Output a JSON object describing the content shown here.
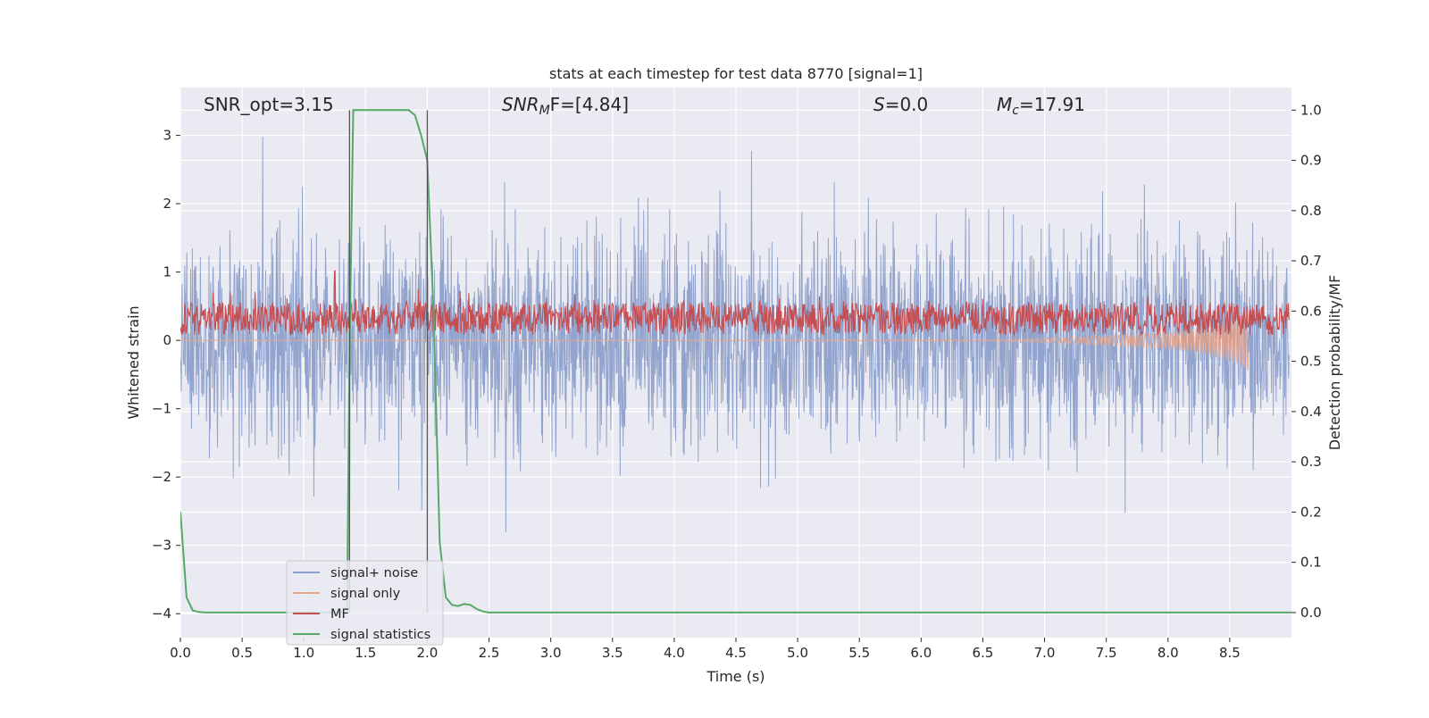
{
  "chart_data": {
    "type": "line",
    "title": "stats at each timestep for test data 8770 [signal=1]",
    "xlabel": "Time (s)",
    "ylabel": "Whitened strain",
    "ylabel_right": "Detection probability/MF",
    "xlim": [
      0.0,
      9.0
    ],
    "ylim": [
      -4.35,
      3.7
    ],
    "ylim_right": [
      -0.05,
      1.045
    ],
    "x_ticks": [
      0.0,
      0.5,
      1.0,
      1.5,
      2.0,
      2.5,
      3.0,
      3.5,
      4.0,
      4.5,
      5.0,
      5.5,
      6.0,
      6.5,
      7.0,
      7.5,
      8.0,
      8.5
    ],
    "x_tick_labels": [
      "0.0",
      "0.5",
      "1.0",
      "1.5",
      "2.0",
      "2.5",
      "3.0",
      "3.5",
      "4.0",
      "4.5",
      "5.0",
      "5.5",
      "6.0",
      "6.5",
      "7.0",
      "7.5",
      "8.0",
      "8.5"
    ],
    "y_ticks": [
      3,
      2,
      1,
      0,
      -1,
      -2,
      -3,
      -4
    ],
    "y_tick_labels": [
      "3",
      "2",
      "1",
      "0",
      "−1",
      "−2",
      "−3",
      "−4"
    ],
    "y_right_ticks": [
      1.0,
      0.9,
      0.8,
      0.7,
      0.6,
      0.5,
      0.4,
      0.3,
      0.2,
      0.1,
      0.0
    ],
    "y_right_tick_labels": [
      "1.0",
      "0.9",
      "0.8",
      "0.7",
      "0.6",
      "0.5",
      "0.4",
      "0.3",
      "0.2",
      "0.1",
      "0.0"
    ],
    "grid": true,
    "legend_position": "lower-left",
    "annotations": {
      "snr_opt": "SNR_opt=3.15",
      "snr_mf_main": "SNR",
      "snr_mf_sub": "M",
      "snr_mf_rest": "F=[4.84]",
      "s_main": "S",
      "s_rest": "=0.0",
      "mc_main": "M",
      "mc_sub": "c",
      "mc_rest": "=17.91"
    },
    "vertical_lines_x": [
      1.37,
      2.0
    ],
    "series": [
      {
        "name": "signal+ noise",
        "color": "#8da0cb",
        "axis": "left",
        "description_range": [
          -4.0,
          3.3
        ]
      },
      {
        "name": "signal only",
        "color": "#e8a58c",
        "axis": "left",
        "envelope": {
          "x": [
            0.0,
            6.5,
            7.0,
            7.5,
            8.0,
            8.3,
            8.5,
            8.65
          ],
          "amp": [
            0.005,
            0.01,
            0.03,
            0.07,
            0.12,
            0.2,
            0.3,
            0.45
          ]
        }
      },
      {
        "name": "MF",
        "color": "#c44e52",
        "axis": "right",
        "baseline": 0.585,
        "spike": {
          "x": 1.25,
          "y": 0.68
        }
      },
      {
        "name": "signal statistics",
        "color": "#55a868",
        "axis": "right",
        "x": [
          0.0,
          0.05,
          0.1,
          0.15,
          0.2,
          1.3,
          1.35,
          1.37,
          1.4,
          1.45,
          1.5,
          1.7,
          1.85,
          1.9,
          1.95,
          2.0,
          2.05,
          2.1,
          2.15,
          2.2,
          2.25,
          2.3,
          2.35,
          2.4,
          2.45,
          2.5,
          2.6,
          9.0
        ],
        "y": [
          0.2,
          0.03,
          0.004,
          0.001,
          0.0,
          0.0,
          0.0,
          0.52,
          1.0,
          1.0,
          1.0,
          1.0,
          1.0,
          0.99,
          0.95,
          0.9,
          0.6,
          0.14,
          0.03,
          0.015,
          0.013,
          0.017,
          0.015,
          0.007,
          0.002,
          0.0,
          0.0,
          0.0
        ]
      }
    ]
  }
}
